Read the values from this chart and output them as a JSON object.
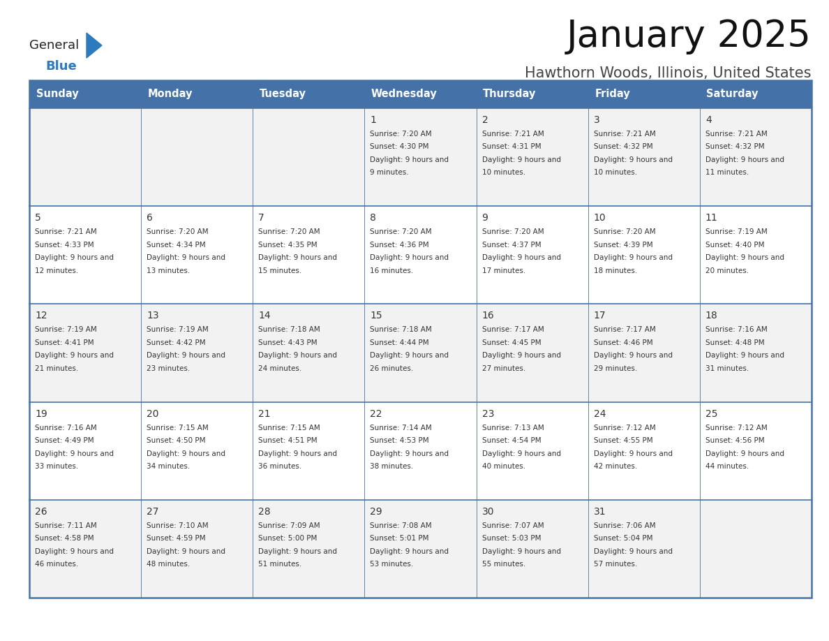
{
  "title": "January 2025",
  "subtitle": "Hawthorn Woods, Illinois, United States",
  "days_of_week": [
    "Sunday",
    "Monday",
    "Tuesday",
    "Wednesday",
    "Thursday",
    "Friday",
    "Saturday"
  ],
  "header_bg": "#4472a8",
  "header_text": "#ffffff",
  "cell_bg_odd": "#f2f2f2",
  "cell_bg_even": "#ffffff",
  "text_color": "#333333",
  "line_color": "#4472a8",
  "logo_general_color": "#222222",
  "logo_blue_color": "#2e7abf",
  "calendar_data": [
    [
      {
        "day": null,
        "sunrise": null,
        "sunset": null,
        "daylight": null
      },
      {
        "day": null,
        "sunrise": null,
        "sunset": null,
        "daylight": null
      },
      {
        "day": null,
        "sunrise": null,
        "sunset": null,
        "daylight": null
      },
      {
        "day": "1",
        "sunrise": "7:20 AM",
        "sunset": "4:30 PM",
        "daylight": "9 hours and 9 minutes."
      },
      {
        "day": "2",
        "sunrise": "7:21 AM",
        "sunset": "4:31 PM",
        "daylight": "9 hours and 10 minutes."
      },
      {
        "day": "3",
        "sunrise": "7:21 AM",
        "sunset": "4:32 PM",
        "daylight": "9 hours and 10 minutes."
      },
      {
        "day": "4",
        "sunrise": "7:21 AM",
        "sunset": "4:32 PM",
        "daylight": "9 hours and 11 minutes."
      }
    ],
    [
      {
        "day": "5",
        "sunrise": "7:21 AM",
        "sunset": "4:33 PM",
        "daylight": "9 hours and 12 minutes."
      },
      {
        "day": "6",
        "sunrise": "7:20 AM",
        "sunset": "4:34 PM",
        "daylight": "9 hours and 13 minutes."
      },
      {
        "day": "7",
        "sunrise": "7:20 AM",
        "sunset": "4:35 PM",
        "daylight": "9 hours and 15 minutes."
      },
      {
        "day": "8",
        "sunrise": "7:20 AM",
        "sunset": "4:36 PM",
        "daylight": "9 hours and 16 minutes."
      },
      {
        "day": "9",
        "sunrise": "7:20 AM",
        "sunset": "4:37 PM",
        "daylight": "9 hours and 17 minutes."
      },
      {
        "day": "10",
        "sunrise": "7:20 AM",
        "sunset": "4:39 PM",
        "daylight": "9 hours and 18 minutes."
      },
      {
        "day": "11",
        "sunrise": "7:19 AM",
        "sunset": "4:40 PM",
        "daylight": "9 hours and 20 minutes."
      }
    ],
    [
      {
        "day": "12",
        "sunrise": "7:19 AM",
        "sunset": "4:41 PM",
        "daylight": "9 hours and 21 minutes."
      },
      {
        "day": "13",
        "sunrise": "7:19 AM",
        "sunset": "4:42 PM",
        "daylight": "9 hours and 23 minutes."
      },
      {
        "day": "14",
        "sunrise": "7:18 AM",
        "sunset": "4:43 PM",
        "daylight": "9 hours and 24 minutes."
      },
      {
        "day": "15",
        "sunrise": "7:18 AM",
        "sunset": "4:44 PM",
        "daylight": "9 hours and 26 minutes."
      },
      {
        "day": "16",
        "sunrise": "7:17 AM",
        "sunset": "4:45 PM",
        "daylight": "9 hours and 27 minutes."
      },
      {
        "day": "17",
        "sunrise": "7:17 AM",
        "sunset": "4:46 PM",
        "daylight": "9 hours and 29 minutes."
      },
      {
        "day": "18",
        "sunrise": "7:16 AM",
        "sunset": "4:48 PM",
        "daylight": "9 hours and 31 minutes."
      }
    ],
    [
      {
        "day": "19",
        "sunrise": "7:16 AM",
        "sunset": "4:49 PM",
        "daylight": "9 hours and 33 minutes."
      },
      {
        "day": "20",
        "sunrise": "7:15 AM",
        "sunset": "4:50 PM",
        "daylight": "9 hours and 34 minutes."
      },
      {
        "day": "21",
        "sunrise": "7:15 AM",
        "sunset": "4:51 PM",
        "daylight": "9 hours and 36 minutes."
      },
      {
        "day": "22",
        "sunrise": "7:14 AM",
        "sunset": "4:53 PM",
        "daylight": "9 hours and 38 minutes."
      },
      {
        "day": "23",
        "sunrise": "7:13 AM",
        "sunset": "4:54 PM",
        "daylight": "9 hours and 40 minutes."
      },
      {
        "day": "24",
        "sunrise": "7:12 AM",
        "sunset": "4:55 PM",
        "daylight": "9 hours and 42 minutes."
      },
      {
        "day": "25",
        "sunrise": "7:12 AM",
        "sunset": "4:56 PM",
        "daylight": "9 hours and 44 minutes."
      }
    ],
    [
      {
        "day": "26",
        "sunrise": "7:11 AM",
        "sunset": "4:58 PM",
        "daylight": "9 hours and 46 minutes."
      },
      {
        "day": "27",
        "sunrise": "7:10 AM",
        "sunset": "4:59 PM",
        "daylight": "9 hours and 48 minutes."
      },
      {
        "day": "28",
        "sunrise": "7:09 AM",
        "sunset": "5:00 PM",
        "daylight": "9 hours and 51 minutes."
      },
      {
        "day": "29",
        "sunrise": "7:08 AM",
        "sunset": "5:01 PM",
        "daylight": "9 hours and 53 minutes."
      },
      {
        "day": "30",
        "sunrise": "7:07 AM",
        "sunset": "5:03 PM",
        "daylight": "9 hours and 55 minutes."
      },
      {
        "day": "31",
        "sunrise": "7:06 AM",
        "sunset": "5:04 PM",
        "daylight": "9 hours and 57 minutes."
      },
      {
        "day": null,
        "sunrise": null,
        "sunset": null,
        "daylight": null
      }
    ]
  ]
}
